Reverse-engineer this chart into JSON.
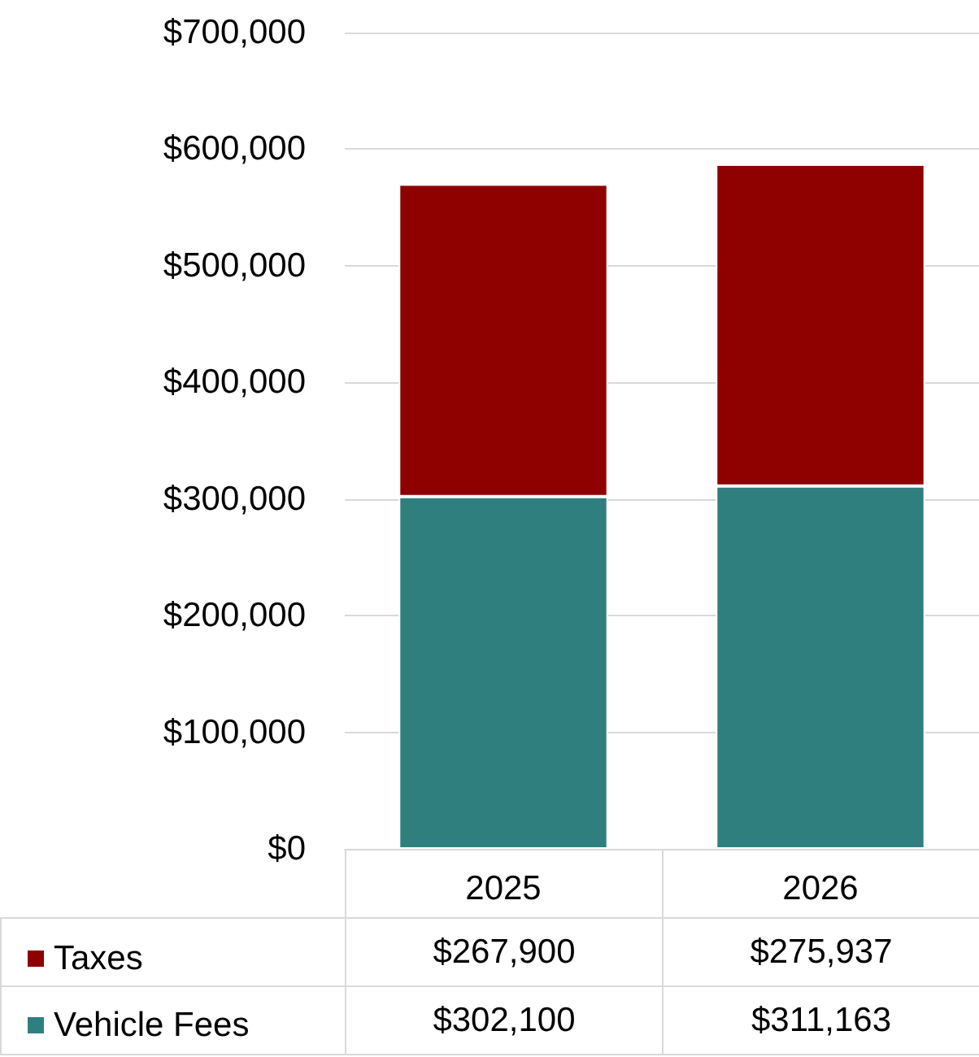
{
  "chart_data": {
    "type": "bar",
    "stacked": true,
    "categories": [
      "2025",
      "2026"
    ],
    "series": [
      {
        "name": "Vehicle Fees",
        "color": "#2f7f7f",
        "values": [
          302100,
          311163
        ],
        "value_labels": [
          "$302,100",
          "$311,163"
        ]
      },
      {
        "name": "Taxes",
        "color": "#8f0000",
        "values": [
          267900,
          275937
        ],
        "value_labels": [
          "$267,900",
          "$275,937"
        ]
      }
    ],
    "ylim": [
      0,
      700000
    ],
    "yticks": [
      {
        "value": 0,
        "label": "$0"
      },
      {
        "value": 100000,
        "label": "$100,000"
      },
      {
        "value": 200000,
        "label": "$200,000"
      },
      {
        "value": 300000,
        "label": "$300,000"
      },
      {
        "value": 400000,
        "label": "$400,000"
      },
      {
        "value": 500000,
        "label": "$500,000"
      },
      {
        "value": 600000,
        "label": "$600,000"
      },
      {
        "value": 700000,
        "label": "$700,000"
      }
    ],
    "grid": "y",
    "legend": "bottom"
  }
}
